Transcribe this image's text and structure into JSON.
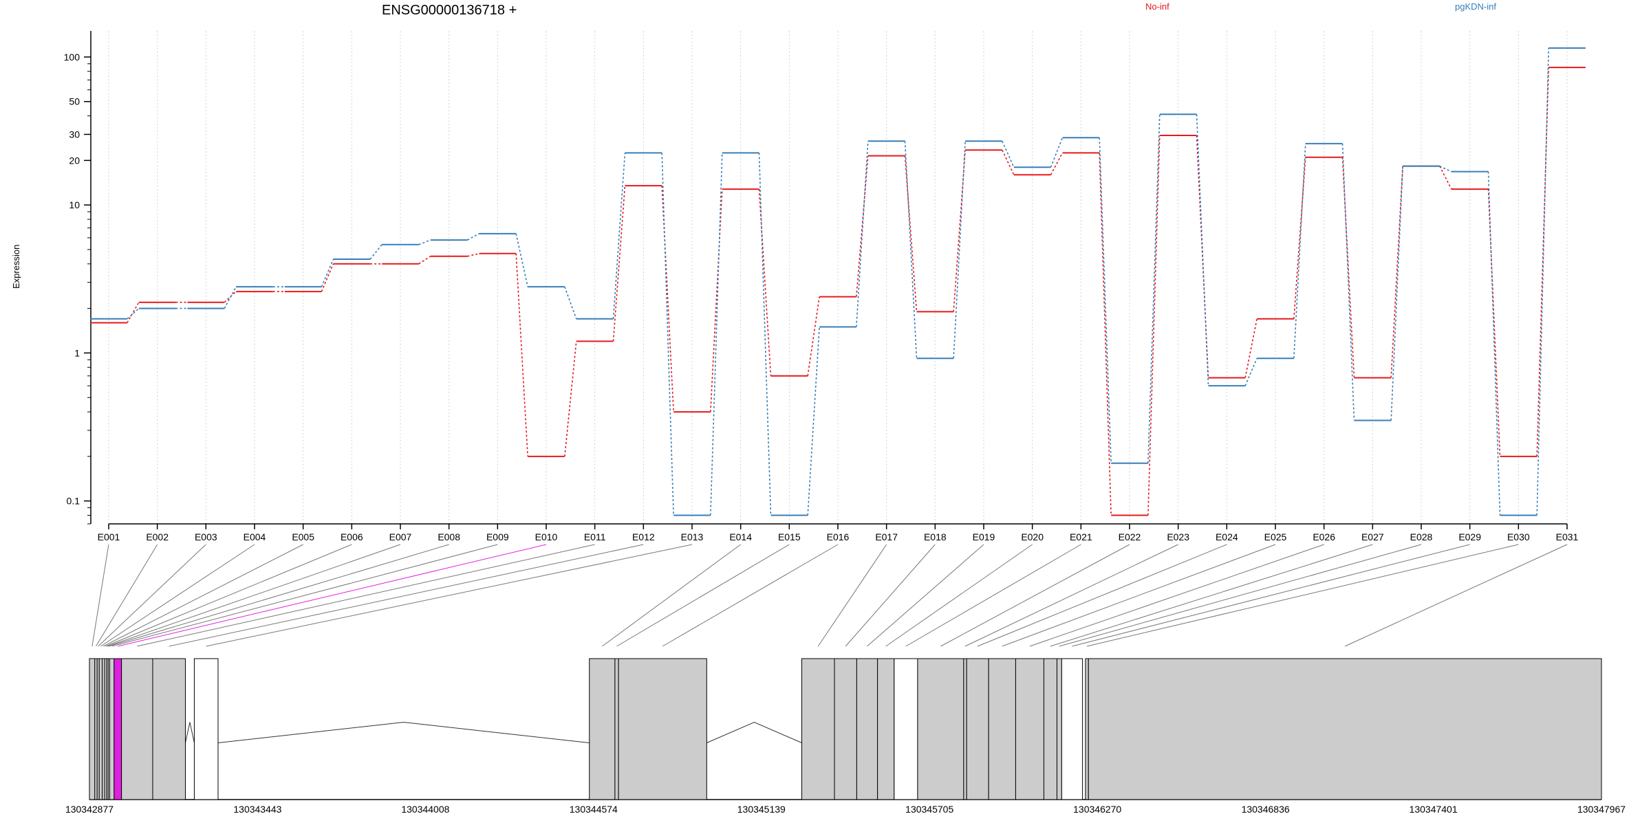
{
  "chart_data": {
    "type": "line",
    "title": "ENSG00000136718 +",
    "ylabel": "Expression",
    "yscale": "log",
    "ylim": [
      0.07,
      150
    ],
    "yticks": [
      "0.1",
      "1",
      "10",
      "20",
      "30",
      "50",
      "100"
    ],
    "ytick_values": [
      0.1,
      1,
      10,
      20,
      30,
      50,
      100
    ],
    "categories": [
      "E001",
      "E002",
      "E003",
      "E004",
      "E005",
      "E006",
      "E007",
      "E008",
      "E009",
      "E010",
      "E011",
      "E012",
      "E013",
      "E014",
      "E015",
      "E016",
      "E017",
      "E018",
      "E019",
      "E020",
      "E021",
      "E022",
      "E023",
      "E024",
      "E025",
      "E026",
      "E027",
      "E028",
      "E029",
      "E030",
      "E031"
    ],
    "series": [
      {
        "name": "No-inf",
        "color": "#e41a1c",
        "values": [
          1.6,
          2.2,
          2.2,
          2.6,
          2.6,
          4.0,
          4.0,
          4.5,
          4.7,
          0.2,
          1.2,
          13.5,
          0.4,
          12.8,
          0.7,
          2.4,
          21.5,
          1.9,
          23.5,
          16.0,
          22.5,
          0.08,
          29.5,
          0.68,
          1.7,
          21.0,
          0.68,
          18.3,
          12.8,
          0.2,
          85.0
        ]
      },
      {
        "name": "pgKDN-inf",
        "color": "#377eb8",
        "values": [
          1.7,
          2.0,
          2.0,
          2.8,
          2.8,
          4.3,
          5.4,
          5.8,
          6.4,
          2.8,
          1.7,
          22.5,
          0.08,
          22.5,
          0.08,
          1.5,
          27.0,
          0.92,
          27.0,
          18.0,
          28.5,
          0.18,
          41.0,
          0.6,
          0.92,
          26.0,
          0.35,
          18.3,
          16.8,
          0.08,
          115.0
        ]
      }
    ],
    "legend_placement": "top",
    "grid": "vertical dotted at each exon",
    "highlighted_exon": "E010",
    "highlight_color": "#e020e0",
    "gene_model": {
      "coordinate_ticks": [
        "130342877",
        "130343443",
        "130344008",
        "130344574",
        "130345139",
        "130345705",
        "130346270",
        "130346836",
        "130347401",
        "130347967"
      ],
      "coordinate_values": [
        130342877,
        130343443,
        130344008,
        130344574,
        130345139,
        130345705,
        130346270,
        130346836,
        130347401,
        130347967
      ],
      "exons": [
        {
          "id": "E001",
          "start": 130342877,
          "end": 130342895,
          "fill": "#cccccc"
        },
        {
          "id": "E002",
          "start": 130342895,
          "end": 130342903,
          "fill": "#cccccc"
        },
        {
          "id": "E003",
          "start": 130342903,
          "end": 130342910,
          "fill": "#cccccc"
        },
        {
          "id": "E004",
          "start": 130342910,
          "end": 130342920,
          "fill": "#cccccc"
        },
        {
          "id": "E005",
          "start": 130342920,
          "end": 130342928,
          "fill": "#cccccc"
        },
        {
          "id": "E006",
          "start": 130342928,
          "end": 130342935,
          "fill": "#cccccc"
        },
        {
          "id": "E007",
          "start": 130342935,
          "end": 130342940,
          "fill": "#cccccc"
        },
        {
          "id": "E008",
          "start": 130342940,
          "end": 130342945,
          "fill": "#cccccc"
        },
        {
          "id": "E009",
          "start": 130342945,
          "end": 130342960,
          "fill": "#cccccc"
        },
        {
          "id": "E010",
          "start": 130342960,
          "end": 130342985,
          "fill": "#e020e0"
        },
        {
          "id": "E011",
          "start": 130342985,
          "end": 130343090,
          "fill": "#cccccc"
        },
        {
          "id": "E012",
          "start": 130343090,
          "end": 130343200,
          "fill": "#cccccc"
        },
        {
          "id": "E013",
          "start": 130343230,
          "end": 130343310,
          "fill": "#ffffff"
        },
        {
          "id": "E014",
          "start": 130344560,
          "end": 130344646,
          "fill": "#cccccc"
        },
        {
          "id": "E015",
          "start": 130344646,
          "end": 130344658,
          "fill": "#cccccc"
        },
        {
          "id": "E016",
          "start": 130344658,
          "end": 130344955,
          "fill": "#cccccc"
        },
        {
          "id": "E017",
          "start": 130345275,
          "end": 130345385,
          "fill": "#cccccc"
        },
        {
          "id": "E018",
          "start": 130345385,
          "end": 130345460,
          "fill": "#cccccc"
        },
        {
          "id": "E019",
          "start": 130345460,
          "end": 130345530,
          "fill": "#cccccc"
        },
        {
          "id": "E020",
          "start": 130345530,
          "end": 130345586,
          "fill": "#cccccc"
        },
        {
          "id": "E021",
          "start": 130345586,
          "end": 130345665,
          "fill": "#ffffff"
        },
        {
          "id": "E022",
          "start": 130345665,
          "end": 130345820,
          "fill": "#cccccc"
        },
        {
          "id": "E023",
          "start": 130345820,
          "end": 130345830,
          "fill": "#cccccc"
        },
        {
          "id": "E024",
          "start": 130345830,
          "end": 130345904,
          "fill": "#cccccc"
        },
        {
          "id": "E025",
          "start": 130345904,
          "end": 130345995,
          "fill": "#cccccc"
        },
        {
          "id": "E026",
          "start": 130345995,
          "end": 130346090,
          "fill": "#cccccc"
        },
        {
          "id": "E027",
          "start": 130346090,
          "end": 130346134,
          "fill": "#cccccc"
        },
        {
          "id": "E028",
          "start": 130346134,
          "end": 130346150,
          "fill": "#cccccc"
        },
        {
          "id": "E029",
          "start": 130346150,
          "end": 130346220,
          "fill": "#ffffff"
        },
        {
          "id": "E030",
          "start": 130346230,
          "end": 130346240,
          "fill": "#cccccc"
        },
        {
          "id": "E031",
          "start": 130346240,
          "end": 130347967,
          "fill": "#cccccc"
        }
      ]
    }
  }
}
